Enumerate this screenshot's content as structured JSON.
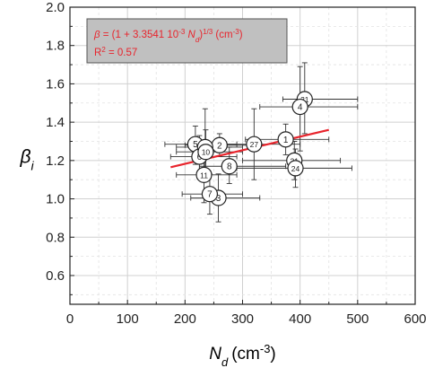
{
  "chart_data": {
    "type": "scatter",
    "xlabel": "N",
    "xlabel_sub": "d",
    "xlabel_unit": "(cm",
    "xlabel_unit_sup": "-3",
    "xlabel_unit_close": ")",
    "ylabel": "β",
    "ylabel_sub": "i",
    "xlim": [
      0,
      600
    ],
    "ylim": [
      0.45,
      2.0
    ],
    "xticks": [
      "0",
      "100",
      "200",
      "300",
      "400",
      "500",
      "600"
    ],
    "yticks": [
      "0.6",
      "0.8",
      "1.0",
      "1.2",
      "1.4",
      "1.6",
      "1.8",
      "2.0"
    ],
    "xtick_values": [
      0,
      100,
      200,
      300,
      400,
      500,
      600
    ],
    "ytick_values": [
      0.6,
      0.8,
      1.0,
      1.2,
      1.4,
      1.6,
      1.8,
      2.0
    ],
    "grid": true,
    "annotation": {
      "eq_beta": "β",
      "eq_part1": " = (1 + 3.3541 10",
      "eq_sup1": "-3",
      "eq_part2": " N",
      "eq_sub": "d",
      "eq_part3": ")",
      "eq_sup2": "1/3",
      "eq_part4": " (cm",
      "eq_sup3": "-3",
      "eq_part5": ")",
      "r2_text": "R",
      "r2_sup": "2",
      "r2_value": " = 0.57",
      "placement": "top-left",
      "color": "#e8242c",
      "background": "#c0c0c0"
    },
    "fit_line": {
      "x": [
        175,
        450
      ],
      "y": [
        1.165,
        1.36
      ],
      "color": "#e8242c"
    },
    "points": [
      {
        "label": "1",
        "x": 375,
        "y": 1.31,
        "xerr": [
          305,
          450
        ],
        "yerr": [
          1.23,
          1.39
        ]
      },
      {
        "label": "2",
        "x": 260,
        "y": 1.28,
        "xerr": [
          200,
          320
        ],
        "yerr": [
          1.22,
          1.34
        ]
      },
      {
        "label": "27",
        "x": 320,
        "y": 1.285,
        "xerr": [
          250,
          400
        ],
        "yerr": [
          1.1,
          1.47
        ]
      },
      {
        "label": "3",
        "x": 258,
        "y": 1.005,
        "xerr": [
          210,
          330
        ],
        "yerr": [
          0.88,
          1.13
        ]
      },
      {
        "label": "31",
        "x": 408,
        "y": 1.52,
        "xerr": [
          370,
          500
        ],
        "yerr": [
          1.34,
          1.71
        ]
      },
      {
        "label": "4",
        "x": 400,
        "y": 1.48,
        "xerr": [
          330,
          500
        ],
        "yerr": [
          1.25,
          1.69
        ]
      },
      {
        "label": "5",
        "x": 218,
        "y": 1.285,
        "xerr": [
          165,
          290
        ],
        "yerr": [
          1.18,
          1.38
        ]
      },
      {
        "label": "6",
        "x": 225,
        "y": 1.22,
        "xerr": [
          175,
          290
        ],
        "yerr": [
          1.13,
          1.33
        ]
      },
      {
        "label": "7",
        "x": 243,
        "y": 1.025,
        "xerr": [
          195,
          300
        ],
        "yerr": [
          0.92,
          1.13
        ]
      },
      {
        "label": "8",
        "x": 277,
        "y": 1.17,
        "xerr": [
          225,
          375
        ],
        "yerr": [
          1.08,
          1.27
        ]
      },
      {
        "label": "9",
        "x": 235,
        "y": 1.27,
        "xerr": [
          185,
          300
        ],
        "yerr": [
          1.1,
          1.47
        ]
      },
      {
        "label": "10",
        "x": 236,
        "y": 1.245,
        "xerr": [
          185,
          300
        ],
        "yerr": [
          1.14,
          1.36
        ]
      },
      {
        "label": "11",
        "x": 233,
        "y": 1.125,
        "xerr": [
          185,
          290
        ],
        "yerr": [
          0.98,
          1.28
        ]
      },
      {
        "label": "21",
        "x": 390,
        "y": 1.2,
        "xerr": [
          300,
          470
        ],
        "yerr": [
          1.1,
          1.3
        ]
      },
      {
        "label": "24",
        "x": 392,
        "y": 1.16,
        "xerr": [
          290,
          490
        ],
        "yerr": [
          1.06,
          1.26
        ]
      }
    ]
  }
}
